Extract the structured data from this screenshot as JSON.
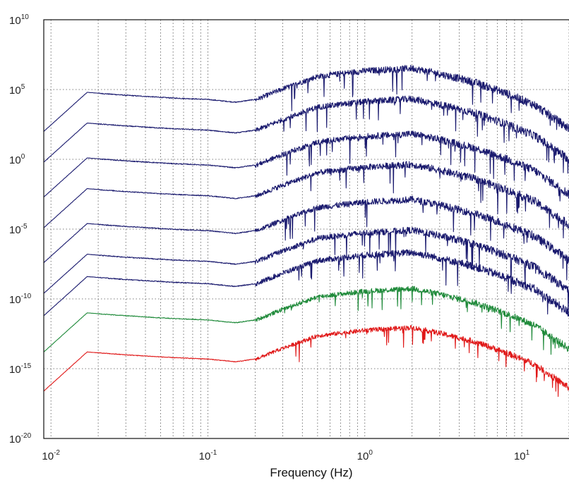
{
  "chart_data": {
    "type": "line",
    "title": "",
    "xlabel": "Frequency (Hz)",
    "ylabel": "",
    "x_scale": "log",
    "y_scale": "log",
    "xlim": [
      0.009,
      20
    ],
    "ylim": [
      1e-20,
      10000000000.0
    ],
    "grid": true,
    "grid_style": "dotted",
    "x_ticks": [
      {
        "value": 0.01,
        "base": "10",
        "exp": "-2"
      },
      {
        "value": 0.1,
        "base": "10",
        "exp": "-1"
      },
      {
        "value": 1,
        "base": "10",
        "exp": "0"
      },
      {
        "value": 10,
        "base": "10",
        "exp": "1"
      }
    ],
    "y_ticks": [
      {
        "value": 10000000000.0,
        "base": "10",
        "exp": "10"
      },
      {
        "value": 100000.0,
        "base": "10",
        "exp": "5"
      },
      {
        "value": 1,
        "base": "10",
        "exp": "0"
      },
      {
        "value": 1e-05,
        "base": "10",
        "exp": "-5"
      },
      {
        "value": 1e-10,
        "base": "10",
        "exp": "-10"
      },
      {
        "value": 1e-15,
        "base": "10",
        "exp": "-15"
      },
      {
        "value": 1e-20,
        "base": "10",
        "exp": "-20"
      }
    ],
    "series_shape": {
      "x": [
        0.009,
        0.017,
        0.03,
        0.06,
        0.1,
        0.15,
        0.2,
        0.3,
        0.5,
        1,
        2,
        3,
        5,
        8,
        12,
        20
      ],
      "offset_exp": [
        -2.8,
        0,
        -0.2,
        -0.4,
        -0.5,
        -0.7,
        -0.5,
        0.3,
        1.2,
        1.6,
        1.8,
        1.4,
        0.8,
        0,
        -0.8,
        -2.5
      ]
    },
    "series": [
      {
        "color": "#1a1a6e",
        "level_exp": 4.8,
        "noise_exp": 0.55
      },
      {
        "color": "#1a1a6e",
        "level_exp": 2.6,
        "noise_exp": 0.55
      },
      {
        "color": "#1a1a6e",
        "level_exp": 0.1,
        "noise_exp": 0.55
      },
      {
        "color": "#1a1a6e",
        "level_exp": -2.1,
        "noise_exp": 0.55
      },
      {
        "color": "#1a1a6e",
        "level_exp": -4.6,
        "noise_exp": 0.55
      },
      {
        "color": "#1a1a6e",
        "level_exp": -6.8,
        "noise_exp": 0.55
      },
      {
        "color": "#1a1a6e",
        "level_exp": -8.4,
        "noise_exp": 0.55
      },
      {
        "color": "#1f8a3a",
        "level_exp": -11.0,
        "noise_exp": 0.45
      },
      {
        "color": "#e01818",
        "level_exp": -13.8,
        "noise_exp": 0.4
      }
    ]
  }
}
